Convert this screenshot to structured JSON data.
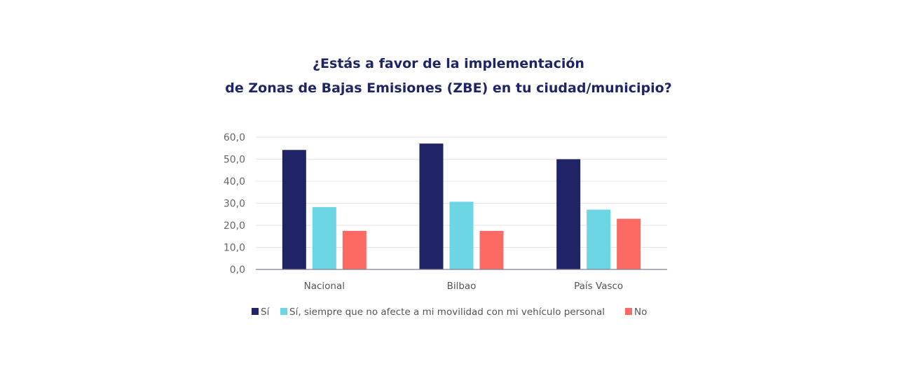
{
  "chart_data": {
    "type": "bar",
    "title": [
      "¿Estás a favor de la implementación",
      "de Zonas de Bajas Emisiones (ZBE) en tu ciudad/municipio?"
    ],
    "xlabel": "",
    "ylabel": "",
    "ylim": [
      0,
      60
    ],
    "yticks": [
      0,
      10,
      20,
      30,
      40,
      50,
      60
    ],
    "ytick_labels": [
      "0,0",
      "10,0",
      "20,0",
      "30,0",
      "40,0",
      "50,0",
      "60,0"
    ],
    "grid": true,
    "legend_position": "bottom",
    "categories": [
      "Nacional",
      "Bilbao",
      "País Vasco"
    ],
    "series": [
      {
        "name": "Sí",
        "color": "#1e2466",
        "values": [
          54.2,
          57.1,
          50.0
        ]
      },
      {
        "name": "Sí, siempre que no afecte a mi movilidad con mi vehículo personal",
        "color": "#6dd6e4",
        "values": [
          28.3,
          30.7,
          27.1
        ]
      },
      {
        "name": "No",
        "color": "#fb6b63",
        "values": [
          17.5,
          17.5,
          23.0
        ]
      }
    ]
  }
}
